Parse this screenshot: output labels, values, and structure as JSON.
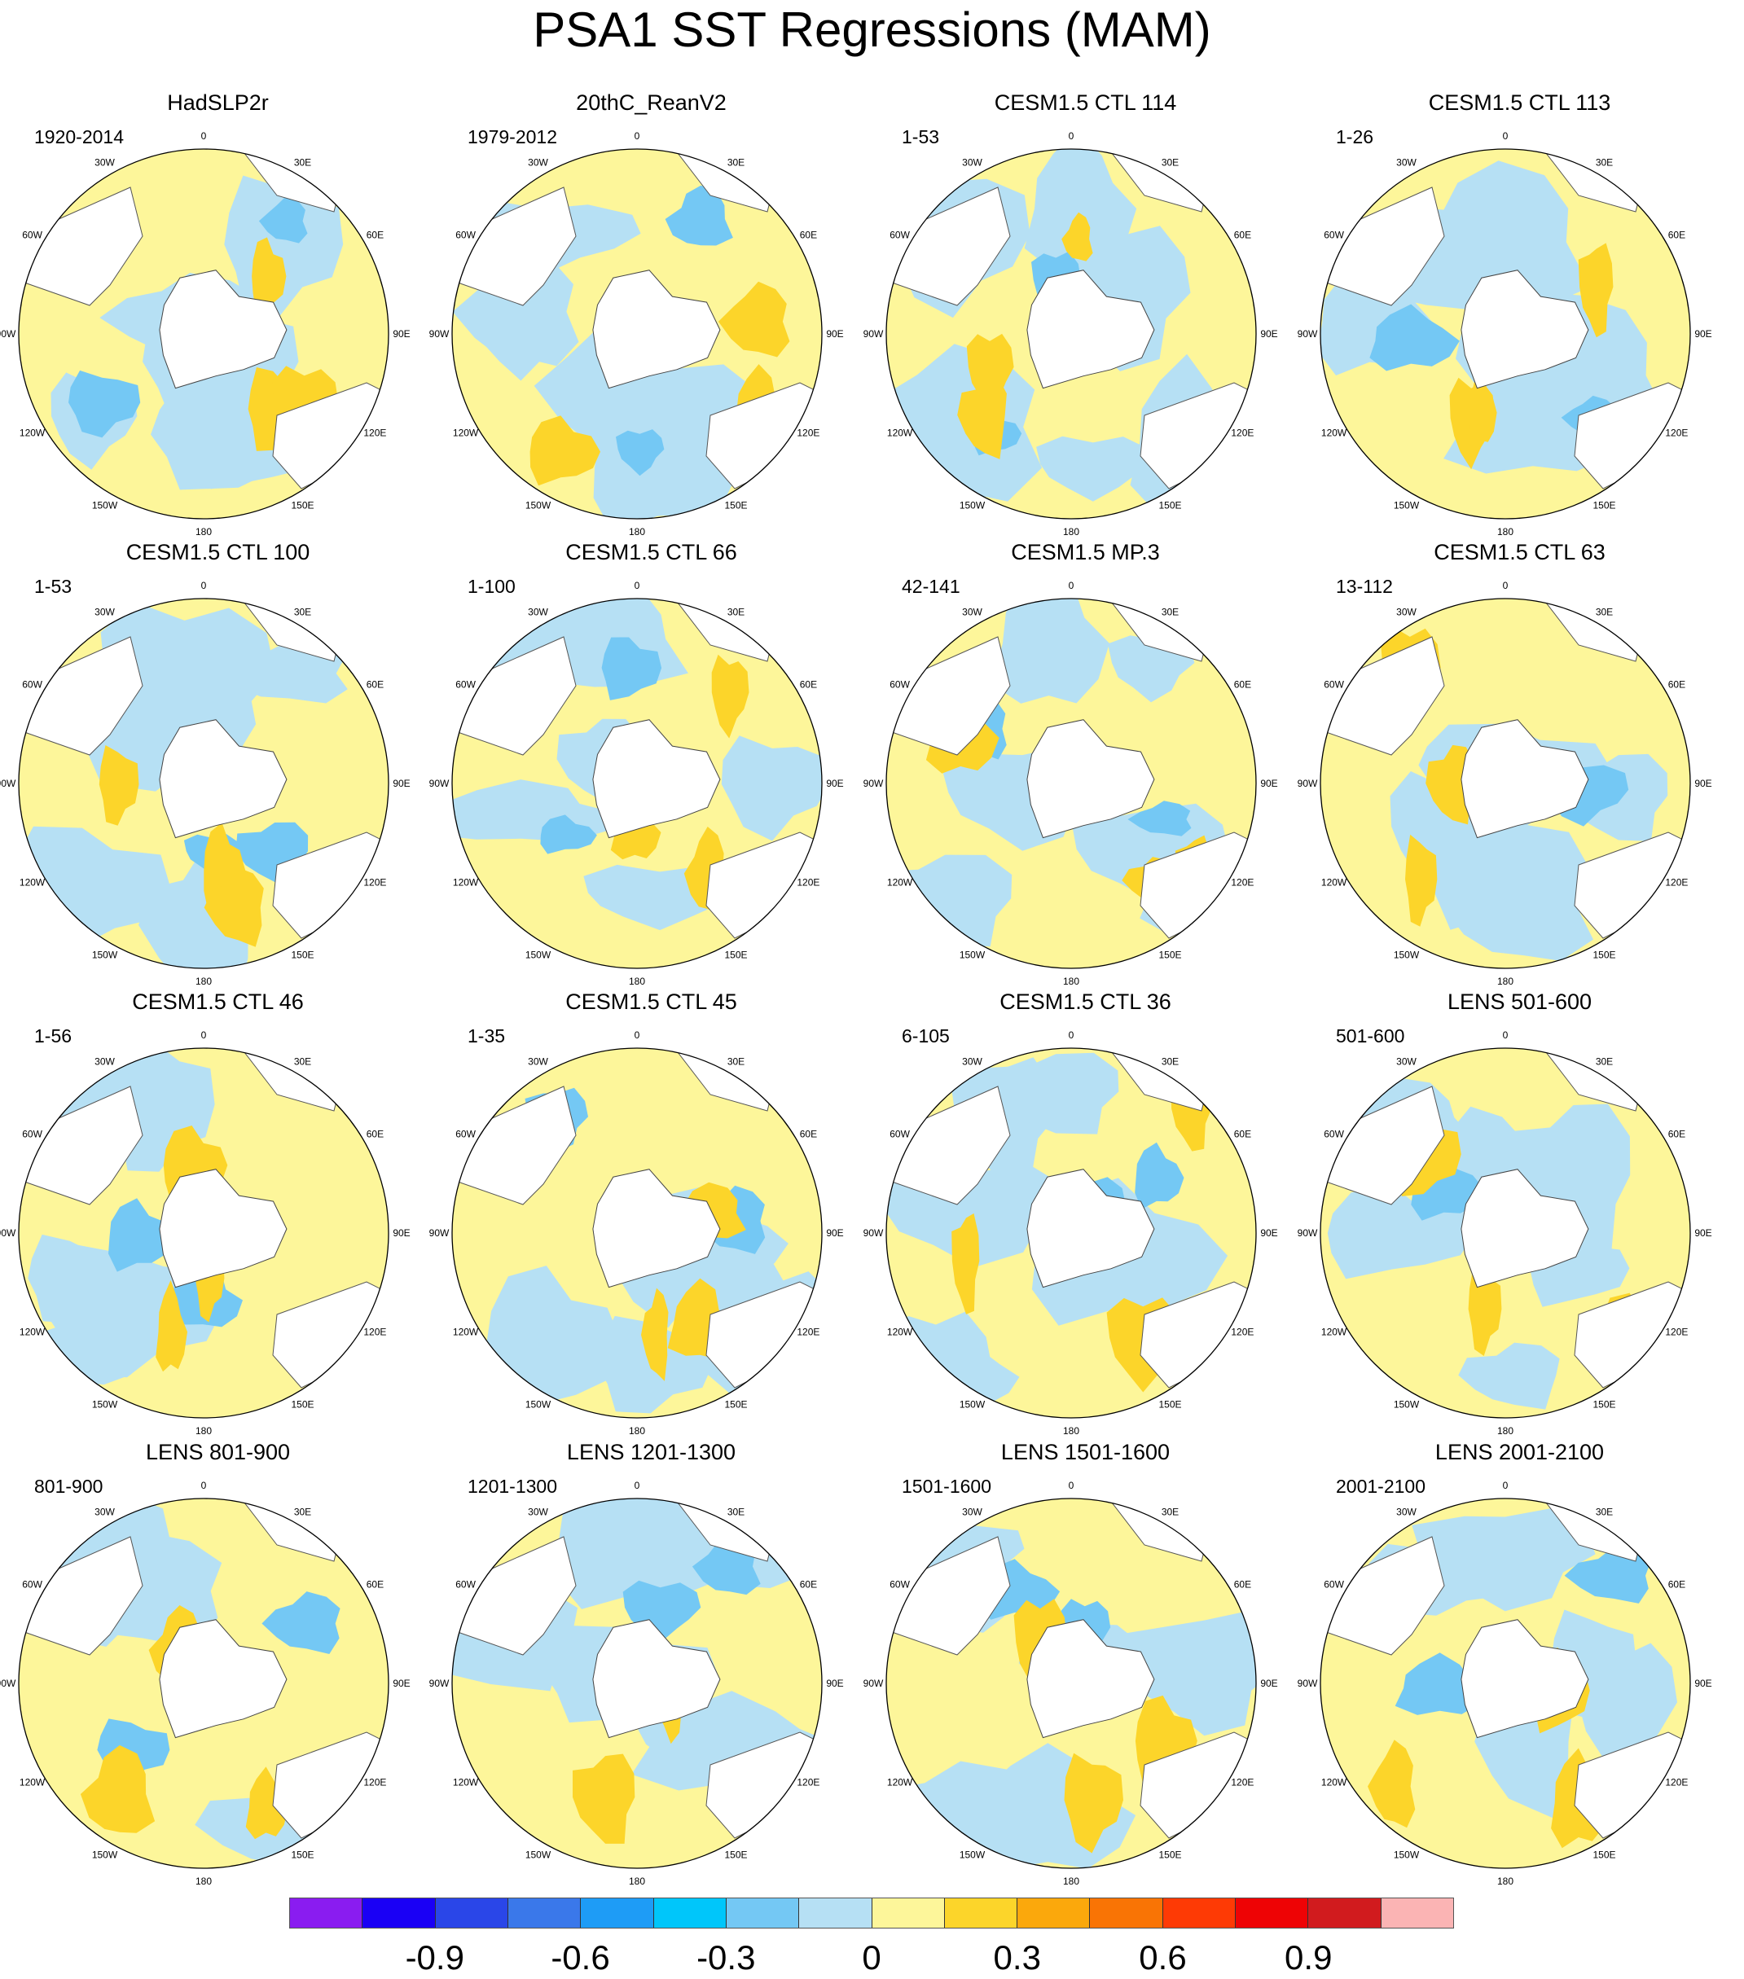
{
  "title": "PSA1 SST Regressions (MAM)",
  "lon_labels": [
    "0",
    "30E",
    "60E",
    "90E",
    "120E",
    "150E",
    "180",
    "150W",
    "120W",
    "90W",
    "60W",
    "30W"
  ],
  "panels": [
    {
      "title": "HadSLP2r",
      "period": "1920-2014"
    },
    {
      "title": "20thC_ReanV2",
      "period": "1979-2012"
    },
    {
      "title": "CESM1.5 CTL 114",
      "period": "1-53"
    },
    {
      "title": "CESM1.5 CTL 113",
      "period": "1-26"
    },
    {
      "title": "CESM1.5 CTL 100",
      "period": "1-53"
    },
    {
      "title": "CESM1.5 CTL 66",
      "period": "1-100"
    },
    {
      "title": "CESM1.5 MP.3",
      "period": "42-141"
    },
    {
      "title": "CESM1.5 CTL 63",
      "period": "13-112"
    },
    {
      "title": "CESM1.5 CTL 46",
      "period": "1-56"
    },
    {
      "title": "CESM1.5 CTL 45",
      "period": "1-35"
    },
    {
      "title": "CESM1.5 CTL 36",
      "period": "6-105"
    },
    {
      "title": "LENS 501-600",
      "period": "501-600"
    },
    {
      "title": "LENS 801-900",
      "period": "801-900"
    },
    {
      "title": "LENS 1201-1300",
      "period": "1201-1300"
    },
    {
      "title": "LENS 1501-1600",
      "period": "1501-1600"
    },
    {
      "title": "LENS 2001-2100",
      "period": "2001-2100"
    }
  ],
  "colorbar": {
    "colors": [
      "#8a1cf0",
      "#1a00f5",
      "#2a46e8",
      "#3a78ea",
      "#1e9cf6",
      "#00c6fa",
      "#74c8f4",
      "#b6e0f4",
      "#fdf69a",
      "#fcd52a",
      "#fba80c",
      "#f97405",
      "#fe3a05",
      "#ee0305",
      "#d11b1e",
      "#fbb4b4"
    ],
    "tick_labels": [
      "-0.9",
      "-0.6",
      "-0.3",
      "0",
      "0.3",
      "0.6",
      "0.9"
    ],
    "tick_values": [
      -0.9,
      -0.6,
      -0.3,
      0,
      0.3,
      0.6,
      0.9
    ],
    "min": -1.2,
    "max": 1.2
  }
}
